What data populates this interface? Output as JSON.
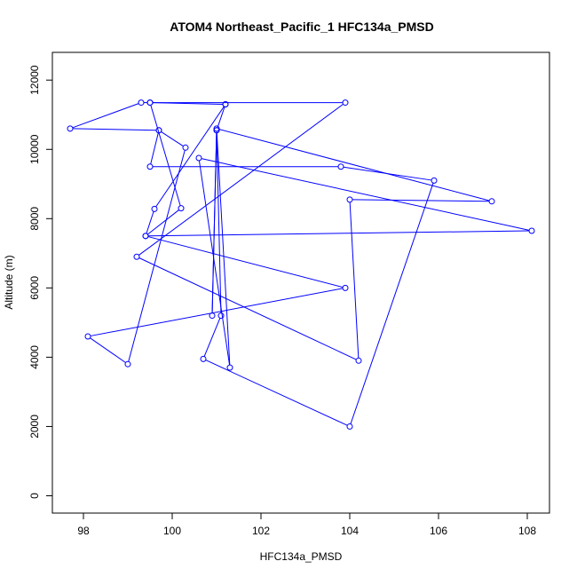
{
  "chart_data": {
    "type": "line",
    "title": "ATOM4 Northeast_Pacific_1 HFC134a_PMSD",
    "xlabel": "HFC134a_PMSD",
    "ylabel": "Altitude (m)",
    "xlim": [
      97.3,
      108.5
    ],
    "ylim": [
      -500,
      12800
    ],
    "x_ticks": [
      98,
      100,
      102,
      104,
      106,
      108
    ],
    "x_tick_labels": [
      "98",
      "100",
      "102",
      "104",
      "106",
      "108"
    ],
    "y_ticks": [
      0,
      2000,
      4000,
      6000,
      8000,
      10000,
      12000
    ],
    "y_tick_labels": [
      "0",
      "2000",
      "4000",
      "6000",
      "8000",
      "10000",
      "12000"
    ],
    "grid": false,
    "color": "#0000ff",
    "series": [
      {
        "markers": "open-circle",
        "points": [
          {
            "x": 101.2,
            "y": 11300
          },
          {
            "x": 99.5,
            "y": 11350
          },
          {
            "x": 103.9,
            "y": 11350
          },
          {
            "x": 99.2,
            "y": 6900
          },
          {
            "x": 104.2,
            "y": 3900
          },
          {
            "x": 104.0,
            "y": 8550
          },
          {
            "x": 107.2,
            "y": 8500
          },
          {
            "x": 101.0,
            "y": 10600
          },
          {
            "x": 101.3,
            "y": 3700
          },
          {
            "x": 100.6,
            "y": 9750
          },
          {
            "x": 108.1,
            "y": 7650
          },
          {
            "x": 99.4,
            "y": 7500
          },
          {
            "x": 103.9,
            "y": 6000
          },
          {
            "x": 98.1,
            "y": 4600
          },
          {
            "x": 99.0,
            "y": 3800
          },
          {
            "x": 100.3,
            "y": 10050
          },
          {
            "x": 99.7,
            "y": 10550
          },
          {
            "x": 99.5,
            "y": 9500
          },
          {
            "x": 103.8,
            "y": 9500
          },
          {
            "x": 105.9,
            "y": 9100
          },
          {
            "x": 104.0,
            "y": 2000
          },
          {
            "x": 100.7,
            "y": 3950
          },
          {
            "x": 101.1,
            "y": 5200
          },
          {
            "x": 101.0,
            "y": 10550
          },
          {
            "x": 100.9,
            "y": 5200
          },
          {
            "x": 101.0,
            "y": 10550
          },
          {
            "x": 101.2,
            "y": 11300
          },
          {
            "x": 99.6,
            "y": 8280
          },
          {
            "x": 99.4,
            "y": 7500
          },
          {
            "x": 100.2,
            "y": 8300
          },
          {
            "x": 99.5,
            "y": 11350
          },
          {
            "x": 99.3,
            "y": 11350
          },
          {
            "x": 97.7,
            "y": 10600
          },
          {
            "x": 99.7,
            "y": 10550
          }
        ]
      }
    ]
  }
}
